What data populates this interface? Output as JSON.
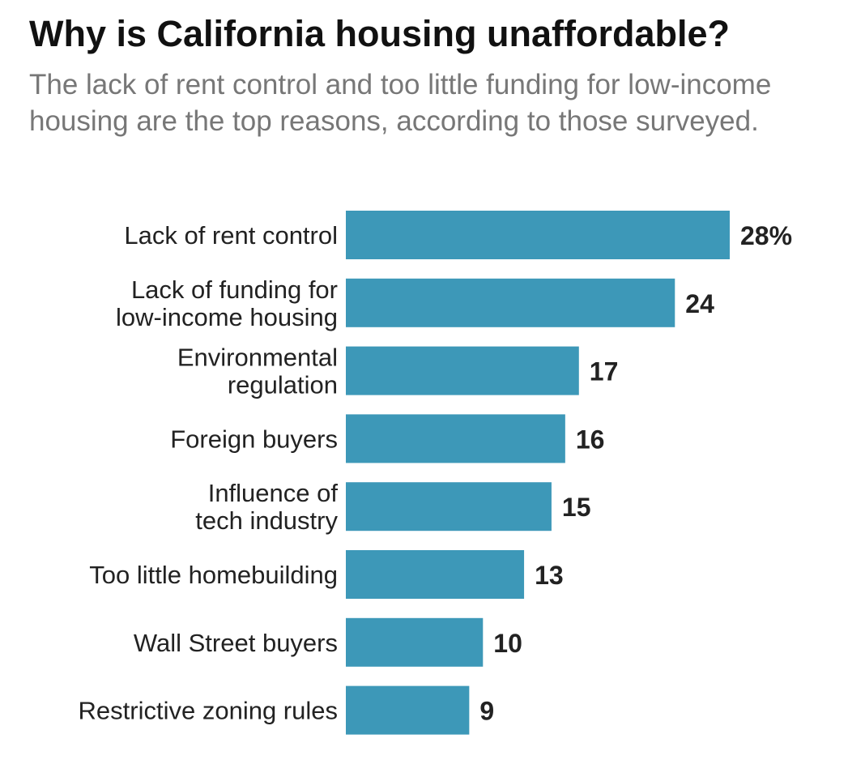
{
  "title": "Why is California housing unaffordable?",
  "subtitle": "The lack of rent control and too little funding for low-income housing are the top reasons, according to those surveyed.",
  "colors": {
    "bar": "#3d98b8",
    "title": "#111111",
    "subtitle": "#777777",
    "label": "#222222"
  },
  "chart_data": {
    "type": "bar",
    "orientation": "horizontal",
    "title": "Why is California housing unaffordable?",
    "subtitle": "The lack of rent control and too little funding for low-income housing are the top reasons, according to those surveyed.",
    "categories": [
      [
        "Lack of rent control"
      ],
      [
        "Lack of funding for",
        "low-income housing"
      ],
      [
        "Environmental",
        "regulation"
      ],
      [
        "Foreign buyers"
      ],
      [
        "Influence of",
        "tech industry"
      ],
      [
        "Too little homebuilding"
      ],
      [
        "Wall Street buyers"
      ],
      [
        "Restrictive zoning rules"
      ]
    ],
    "values": [
      28,
      24,
      17,
      16,
      15,
      13,
      10,
      9
    ],
    "value_labels": [
      "28%",
      "24",
      "17",
      "16",
      "15",
      "13",
      "10",
      "9"
    ],
    "unit": "%",
    "xlim": [
      0,
      28
    ],
    "xlabel": "",
    "ylabel": "",
    "grid": false,
    "legend": "none"
  }
}
